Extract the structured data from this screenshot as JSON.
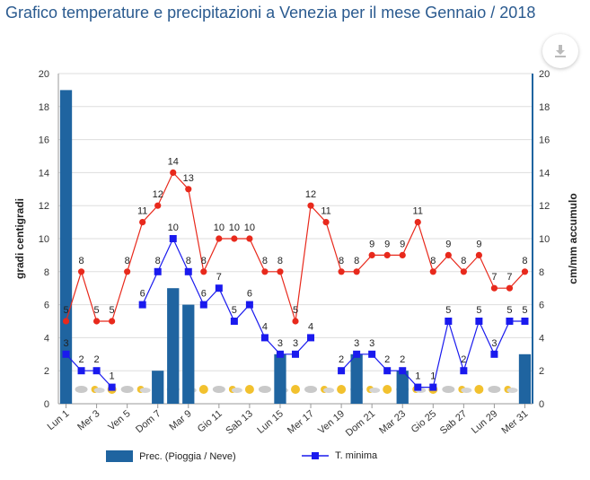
{
  "title": "Grafico temperature e precipitazioni a Venezia per il mese Gennaio / 2018",
  "download_icon": "download-icon",
  "colors": {
    "bar": "#1f64a0",
    "tmax": "#e8291c",
    "tmin": "#1a1aee",
    "axis": "#1f64a0",
    "grid": "#dddddd"
  },
  "chart_data": {
    "type": "bar+line",
    "categories": [
      "Lun 1",
      "Mar 2",
      "Mer 3",
      "Gio 4",
      "Ven 5",
      "Sab 6",
      "Dom 7",
      "Lun 8",
      "Mar 9",
      "Mer 10",
      "Gio 11",
      "Ven 12",
      "Sab 13",
      "Dom 14",
      "Lun 15",
      "Mar 16",
      "Mer 17",
      "Gio 18",
      "Ven 19",
      "Sab 20",
      "Dom 21",
      "Lun 22",
      "Mar 23",
      "Mer 24",
      "Gio 25",
      "Ven 26",
      "Sab 27",
      "Dom 28",
      "Lun 29",
      "Mar 30",
      "Mer 31"
    ],
    "x_tick_labels": [
      "Lun 1",
      "Mer 3",
      "Ven 5",
      "Dom 7",
      "Mar 9",
      "Gio 11",
      "Sab 13",
      "Lun 15",
      "Mer 17",
      "Ven 19",
      "Dom 21",
      "Mar 23",
      "Gio 25",
      "Sab 27",
      "Lun 29",
      "Mer 31"
    ],
    "ylabel_left": "gradi centigradi",
    "ylabel_right": "cm/mm accumulo",
    "ylim": [
      0,
      20
    ],
    "yticks": [
      0,
      2,
      4,
      6,
      8,
      10,
      12,
      14,
      16,
      18,
      20
    ],
    "series": [
      {
        "name": "Prec. (Pioggia / Neve)",
        "kind": "bar",
        "values": [
          19,
          0,
          0,
          0,
          0,
          0,
          2,
          7,
          6,
          0,
          0,
          0,
          0,
          0,
          3,
          0,
          0,
          0,
          0,
          3,
          0,
          0,
          2,
          0,
          0,
          0,
          0,
          0,
          0,
          0,
          3
        ]
      },
      {
        "kind": "line",
        "values": [
          5,
          8,
          5,
          5,
          8,
          11,
          12,
          14,
          13,
          8,
          10,
          10,
          10,
          8,
          8,
          5,
          12,
          11,
          8,
          8,
          9,
          9,
          9,
          11,
          8,
          9,
          8,
          9,
          7,
          7,
          8
        ]
      },
      {
        "name": "T. minima",
        "kind": "line",
        "values": [
          3,
          2,
          2,
          1,
          null,
          6,
          8,
          10,
          8,
          6,
          7,
          5,
          6,
          4,
          3,
          3,
          4,
          null,
          2,
          3,
          3,
          2,
          2,
          1,
          1,
          5,
          2,
          5,
          3,
          5,
          5
        ]
      }
    ]
  },
  "legend": {
    "bar_label": "Prec. (Pioggia / Neve)",
    "tmin_label": "T. minima"
  }
}
